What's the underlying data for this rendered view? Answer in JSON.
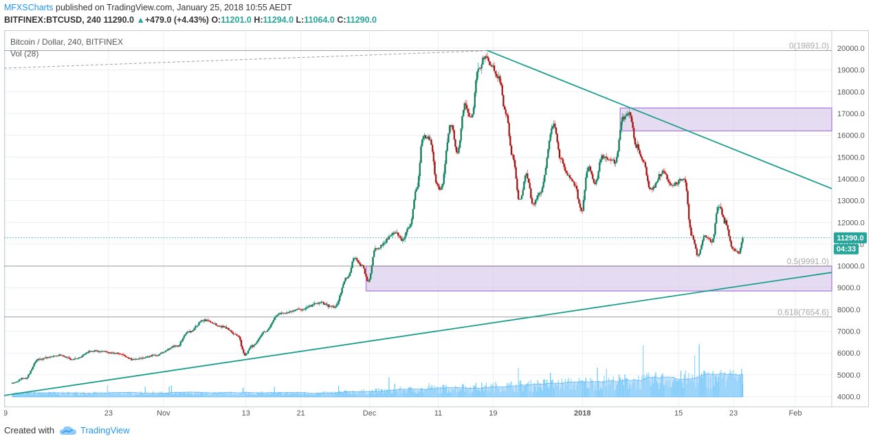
{
  "header": {
    "publisher": "MFXSCharts",
    "published_text": "published on TradingView.com, January 25, 2018 10:55 AEDT",
    "symbol": "BITFINEX:BTCUSD, 240",
    "last": "11290.0",
    "change_arrow": "▲",
    "change": "+479.0 (+4.43%)",
    "o_label": "O:",
    "o_val": "11201.0",
    "h_label": "H:",
    "h_val": "11294.0",
    "l_label": "L:",
    "l_val": "11064.0",
    "c_label": "C:",
    "c_val": "11290.0"
  },
  "pane": {
    "title": "Bitcoin / Dollar, 240, BITFINEX",
    "volume_label": "Vol (28)",
    "price_tag": "11290.0",
    "countdown": "04:33"
  },
  "footer": {
    "created_with": "Created with",
    "brand": "TradingView"
  },
  "colors": {
    "up": "#26a69a",
    "down": "#ef5350",
    "body_up": "#1f7a4d",
    "body_down": "#8b1a1a",
    "trendline": "#1a9e8c",
    "zone_fill": "#d9c9ea",
    "zone_stroke": "#b58be0",
    "vol_ma": "#90caf9",
    "grid": "#eceff2",
    "axis_text": "#555"
  },
  "chart_data": {
    "type": "candlestick",
    "title": "Bitcoin / Dollar, 240, BITFINEX",
    "ylim": [
      3500,
      21000
    ],
    "y_ticks": [
      4000,
      5000,
      6000,
      7000,
      8000,
      9000,
      10000,
      11000,
      12000,
      13000,
      14000,
      15000,
      16000,
      17000,
      18000,
      19000,
      20000
    ],
    "y_tick_labels": [
      "4000.0",
      "5000.0",
      "6000.0",
      "7000.0",
      "8000.0",
      "9000.0",
      "10000.0",
      "11000.0",
      "12000.0",
      "13000.0",
      "14000.0",
      "15000.0",
      "16000.0",
      "17000.0",
      "18000.0",
      "19000.0",
      "20000.0"
    ],
    "x_ticks": [
      {
        "day": -1,
        "label": "9"
      },
      {
        "day": 14,
        "label": "23"
      },
      {
        "day": 22,
        "label": "Nov"
      },
      {
        "day": 34,
        "label": "13"
      },
      {
        "day": 42,
        "label": "21"
      },
      {
        "day": 52,
        "label": "Dec"
      },
      {
        "day": 62,
        "label": "11"
      },
      {
        "day": 70,
        "label": "19"
      },
      {
        "day": 83,
        "label": "2018"
      },
      {
        "day": 97,
        "label": "15"
      },
      {
        "day": 105,
        "label": "23"
      },
      {
        "day": 114,
        "label": "Feb"
      }
    ],
    "x_range_days": [
      -1.2,
      119.3
    ],
    "last_day": 106.5,
    "price_keypoints": [
      [
        0,
        4600
      ],
      [
        2,
        4850
      ],
      [
        4,
        5700
      ],
      [
        7,
        5900
      ],
      [
        9,
        5700
      ],
      [
        12,
        6100
      ],
      [
        15,
        6000
      ],
      [
        18,
        5700
      ],
      [
        21,
        5900
      ],
      [
        24,
        6300
      ],
      [
        26,
        7000
      ],
      [
        28,
        7500
      ],
      [
        31,
        7200
      ],
      [
        33,
        6800
      ],
      [
        34,
        5900
      ],
      [
        35,
        6300
      ],
      [
        37,
        7000
      ],
      [
        39,
        7800
      ],
      [
        42,
        8000
      ],
      [
        45,
        8300
      ],
      [
        47,
        8100
      ],
      [
        49,
        9500
      ],
      [
        50,
        10400
      ],
      [
        51,
        10000
      ],
      [
        52,
        9300
      ],
      [
        53,
        10800
      ],
      [
        56,
        11500
      ],
      [
        57,
        11200
      ],
      [
        58,
        11800
      ],
      [
        59,
        13500
      ],
      [
        60,
        16000
      ],
      [
        61,
        15800
      ],
      [
        62,
        13700
      ],
      [
        62.5,
        13500
      ],
      [
        64,
        16500
      ],
      [
        65,
        15200
      ],
      [
        66,
        17400
      ],
      [
        67,
        16800
      ],
      [
        68,
        19000
      ],
      [
        69,
        19600
      ],
      [
        70,
        19200
      ],
      [
        71,
        18600
      ],
      [
        72,
        17000
      ],
      [
        73,
        15000
      ],
      [
        74,
        13000
      ],
      [
        75,
        14200
      ],
      [
        76,
        12800
      ],
      [
        77,
        13400
      ],
      [
        79,
        16500
      ],
      [
        80,
        14900
      ],
      [
        81,
        14200
      ],
      [
        82,
        13800
      ],
      [
        83,
        12500
      ],
      [
        84,
        14500
      ],
      [
        85,
        13800
      ],
      [
        86,
        15000
      ],
      [
        88,
        14800
      ],
      [
        89,
        16800
      ],
      [
        90,
        17000
      ],
      [
        91,
        15500
      ],
      [
        92,
        14800
      ],
      [
        93,
        13500
      ],
      [
        95,
        14300
      ],
      [
        96,
        13700
      ],
      [
        98,
        14000
      ],
      [
        99,
        11500
      ],
      [
        100,
        10500
      ],
      [
        101,
        11400
      ],
      [
        102,
        11100
      ],
      [
        103,
        12800
      ],
      [
        104,
        12000
      ],
      [
        105,
        10800
      ],
      [
        106,
        10600
      ],
      [
        106.5,
        11290
      ]
    ],
    "volume_range": [
      0,
      2000
    ],
    "trendlines": [
      {
        "name": "rising",
        "from": [
          -1.2,
          4050
        ],
        "to": [
          119.3,
          9700
        ]
      },
      {
        "name": "falling",
        "from": [
          69.1,
          19900
        ],
        "to": [
          119.3,
          13550
        ]
      }
    ],
    "dashed_line": {
      "from": [
        -1.2,
        19080
      ],
      "to": [
        69.1,
        19880
      ]
    },
    "zones": [
      {
        "x_from": 88.5,
        "x_to": 119.3,
        "y_from": 16200,
        "y_to": 17250
      },
      {
        "x_from": 51.5,
        "x_to": 119.3,
        "y_from": 8850,
        "y_to": 9990
      }
    ],
    "fib_levels": [
      {
        "label": "0(19891.0)",
        "value": 19891
      },
      {
        "label": "0.5(9991.0)",
        "value": 9991
      },
      {
        "label": "0.618(7654.6)",
        "value": 7654.6
      }
    ],
    "last_price": 11290
  }
}
